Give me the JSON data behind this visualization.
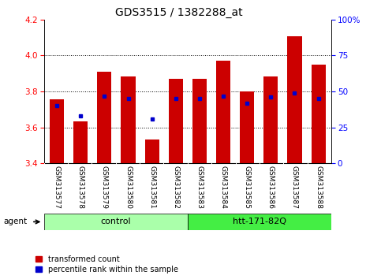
{
  "title": "GDS3515 / 1382288_at",
  "samples": [
    "GSM313577",
    "GSM313578",
    "GSM313579",
    "GSM313580",
    "GSM313581",
    "GSM313582",
    "GSM313583",
    "GSM313584",
    "GSM313585",
    "GSM313586",
    "GSM313587",
    "GSM313588"
  ],
  "bar_values": [
    3.755,
    3.635,
    3.91,
    3.885,
    3.53,
    3.87,
    3.87,
    3.97,
    3.8,
    3.885,
    4.105,
    3.95
  ],
  "blue_values": [
    3.72,
    3.665,
    3.775,
    3.762,
    3.648,
    3.762,
    3.762,
    3.773,
    3.733,
    3.771,
    3.79,
    3.762
  ],
  "bar_color": "#cc0000",
  "blue_color": "#0000cc",
  "y_min": 3.4,
  "y_max": 4.2,
  "y_ticks_left": [
    3.4,
    3.6,
    3.8,
    4.0,
    4.2
  ],
  "y_ticks_right": [
    0,
    25,
    50,
    75,
    100
  ],
  "y_tick_labels_right": [
    "0",
    "25",
    "50",
    "75",
    "100%"
  ],
  "ctrl_color": "#aaffaa",
  "htt_color": "#44ee44",
  "bg_color": "#ffffff",
  "title_fontsize": 10,
  "tick_fontsize": 7.5,
  "bar_width": 0.6,
  "label_fontsize": 6.5,
  "group_fontsize": 8
}
